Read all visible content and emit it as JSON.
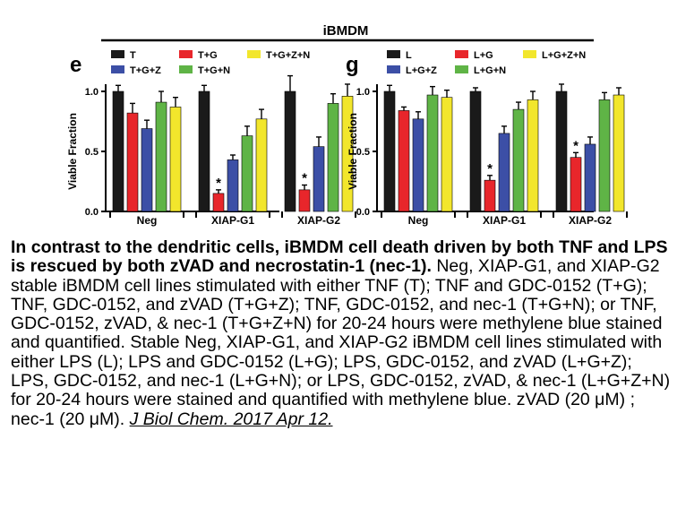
{
  "figure_title": "iBMDM",
  "panels": [
    {
      "letter": "e",
      "legend_row1": [
        "T",
        "T+G",
        "T+G+Z+N"
      ],
      "legend_row2": [
        "T+G+Z",
        "T+G+N"
      ]
    },
    {
      "letter": "g",
      "legend_row1": [
        "L",
        "L+G",
        "L+G+Z+N"
      ],
      "legend_row2": [
        "L+G+Z",
        "L+G+N"
      ]
    }
  ],
  "colors": [
    "#1a1a1a",
    "#e8262b",
    "#3c4fa6",
    "#5fb446",
    "#f2e62c"
  ],
  "chart_data": [
    {
      "type": "bar",
      "panel": "e",
      "ylabel": "Viable Fraction",
      "ylim": [
        0,
        1.0
      ],
      "yticks": [
        "0.0",
        "0.5",
        "1.0"
      ],
      "categories": [
        "Neg",
        "XIAP-G1",
        "XIAP-G2"
      ],
      "series": [
        {
          "name": "T",
          "values": [
            1.0,
            1.0,
            1.0
          ],
          "errors": [
            0.05,
            0.05,
            0.13
          ]
        },
        {
          "name": "T+G",
          "values": [
            0.82,
            0.15,
            0.18
          ],
          "errors": [
            0.08,
            0.03,
            0.04
          ]
        },
        {
          "name": "T+G+Z",
          "values": [
            0.69,
            0.43,
            0.54
          ],
          "errors": [
            0.07,
            0.04,
            0.08
          ]
        },
        {
          "name": "T+G+N",
          "values": [
            0.91,
            0.63,
            0.9
          ],
          "errors": [
            0.09,
            0.08,
            0.08
          ]
        },
        {
          "name": "T+G+Z+N",
          "values": [
            0.87,
            0.77,
            0.96
          ],
          "errors": [
            0.08,
            0.08,
            0.1
          ]
        }
      ],
      "annotations": [
        "*",
        "*"
      ]
    },
    {
      "type": "bar",
      "panel": "g",
      "ylabel": "Viable Fraction",
      "ylim": [
        0,
        1.0
      ],
      "yticks": [
        "0.0",
        "0.5",
        "1.0"
      ],
      "categories": [
        "Neg",
        "XIAP-G1",
        "XIAP-G2"
      ],
      "series": [
        {
          "name": "L",
          "values": [
            1.0,
            1.0,
            1.0
          ],
          "errors": [
            0.05,
            0.03,
            0.06
          ]
        },
        {
          "name": "L+G",
          "values": [
            0.84,
            0.26,
            0.45
          ],
          "errors": [
            0.03,
            0.04,
            0.04
          ]
        },
        {
          "name": "L+G+Z",
          "values": [
            0.77,
            0.65,
            0.56
          ],
          "errors": [
            0.06,
            0.06,
            0.06
          ]
        },
        {
          "name": "L+G+N",
          "values": [
            0.97,
            0.85,
            0.93
          ],
          "errors": [
            0.07,
            0.06,
            0.06
          ]
        },
        {
          "name": "L+G+Z+N",
          "values": [
            0.95,
            0.93,
            0.97
          ],
          "errors": [
            0.06,
            0.07,
            0.06
          ]
        }
      ],
      "annotations": [
        "*",
        "*"
      ]
    }
  ],
  "caption": {
    "lead": "In contrast to the dendritic cells, iBMDM cell death driven by both TNF and LPS is rescued by both zVAD and necrostatin-1 (nec-1).",
    "body": "Neg, XIAP-G1, and XIAP-G2 stable iBMDM cell lines stimulated with either TNF (T); TNF and GDC-0152 (T+G); TNF, GDC-0152, and zVAD (T+G+Z); TNF, GDC-0152, and nec-1 (T+G+N); or TNF, GDC-0152, zVAD, & nec-1 (T+G+Z+N) for 20-24 hours were methylene blue stained and quantified. Stable Neg, XIAP-G1, and XIAP-G2 iBMDM cell lines stimulated with either LPS (L); LPS and GDC-0152 (L+G); LPS, GDC-0152, and zVAD (L+G+Z); LPS, GDC-0152, and nec-1 (L+G+N); or LPS, GDC-0152, zVAD, & nec-1 (L+G+Z+N) for 20-24 hours were stained and quantified with methylene blue. zVAD (20 μM) ; nec-1 (20 μM).",
    "citation": "J Biol Chem. 2017 Apr 12."
  }
}
